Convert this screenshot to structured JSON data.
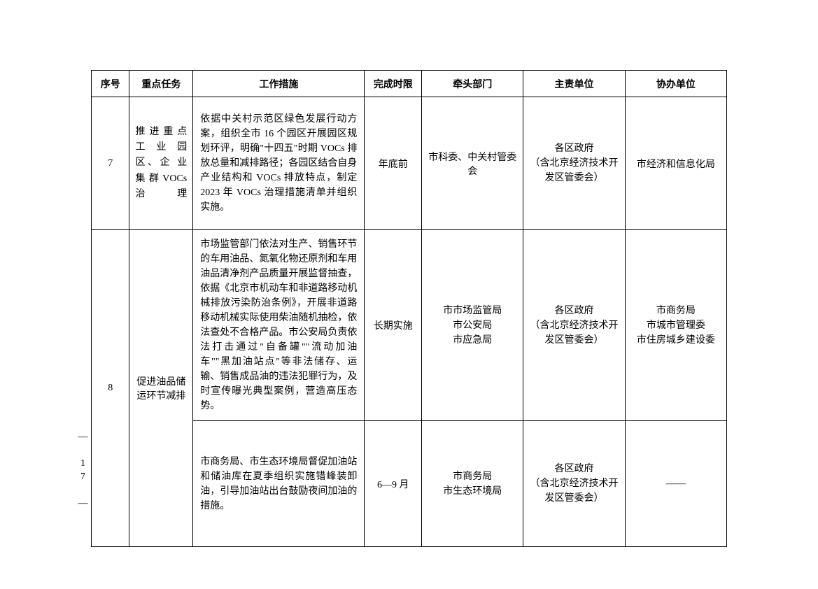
{
  "headers": {
    "seq": "序号",
    "task": "重点任务",
    "measure": "工作措施",
    "deadline": "完成时限",
    "lead": "牵头部门",
    "resp": "主责单位",
    "assist": "协办单位"
  },
  "rows": [
    {
      "seq": "7",
      "task": "推 进 重 点 工 业 园 区、企 业 集 群 VOCs 治理",
      "measure": "依据中关村示范区绿色发展行动方案，组织全市 16 个园区开展园区规划环评，明确\"十四五\"时期 VOCs 排放总量和减排路径；各园区结合自身产业结构和 VOCs 排放特点，制定 2023 年 VOCs 治理措施清单并组织实施。",
      "deadline": "年底前",
      "lead": "市科委、中关村管委会",
      "resp": "各区政府\n（含北京经济技术开发区管委会）",
      "assist": "市经济和信息化局"
    },
    {
      "seq": "8",
      "task": "促进油品储运环节减排",
      "sub": [
        {
          "measure": "市场监管部门依法对生产、销售环节的车用油品、氮氧化物还原剂和车用油品清净剂产品质量开展监督抽查，依据《北京市机动车和非道路移动机械排放污染防治条例》，开展非道路移动机械实际使用柴油随机抽检，依法查处不合格产品。市公安局负责依法打击通过\"自备罐\"\"流动加油车\"\"黑加油站点\"等非法储存、运输、销售成品油的违法犯罪行为，及时宣传曝光典型案例，营造高压态势。",
          "deadline": "长期实施",
          "lead": "市市场监管局\n市公安局\n市应急局",
          "resp": "各区政府\n（含北京经济技术开发区管委会）",
          "assist": "市商务局\n市城市管理委\n市住房城乡建设委"
        },
        {
          "measure": "市商务局、市生态环境局督促加油站和储油库在夏季组织实施错峰装卸油，引导加油站出台鼓励夜间加油的措施。",
          "deadline": "6—9 月",
          "lead": "市商务局\n市生态环境局",
          "resp": "各区政府\n（含北京经济技术开发区管委会）",
          "assist": "——"
        }
      ]
    }
  ],
  "page_number": "— 17 —"
}
